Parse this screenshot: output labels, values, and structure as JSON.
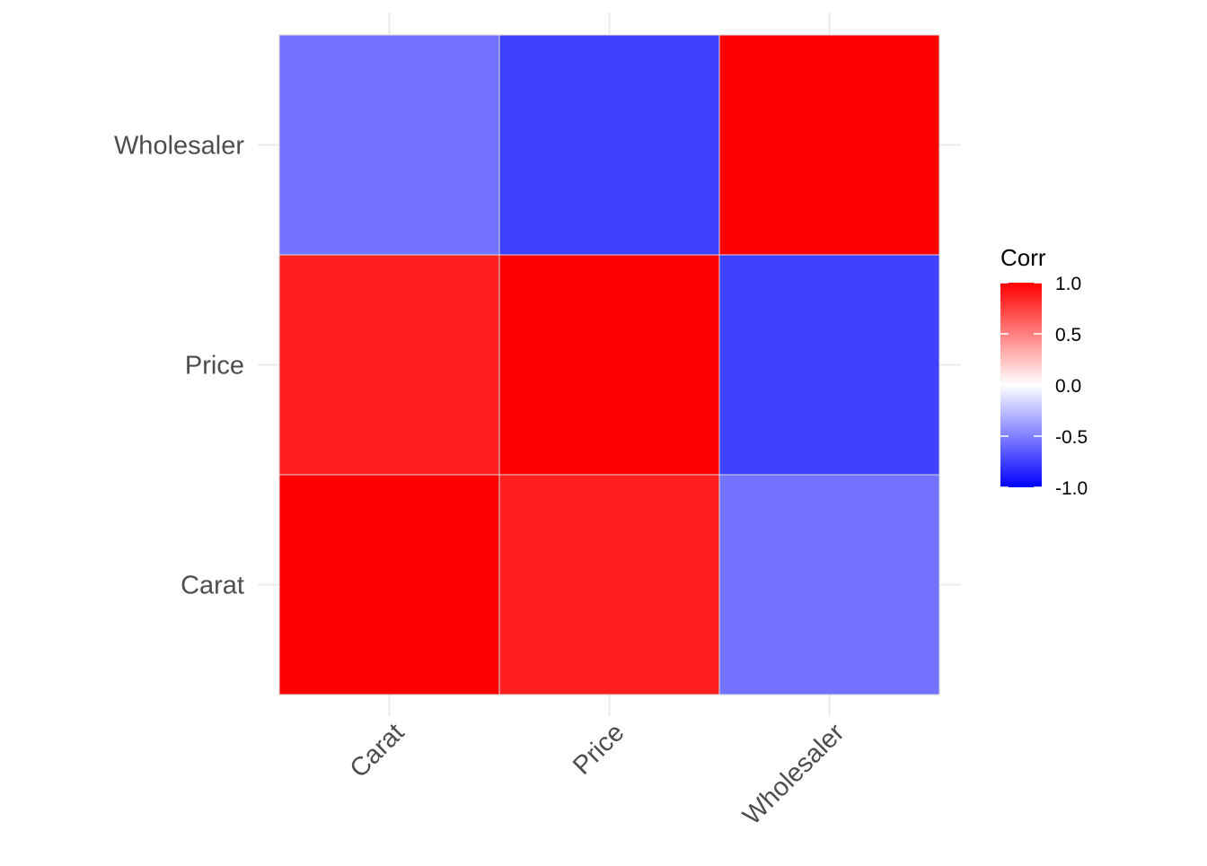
{
  "chart_data": {
    "type": "heatmap",
    "x_categories": [
      "Carat",
      "Price",
      "Wholesaler"
    ],
    "y_categories": [
      "Carat",
      "Price",
      "Wholesaler"
    ],
    "cells": [
      {
        "x": "Carat",
        "y": "Carat",
        "value": 1.0
      },
      {
        "x": "Price",
        "y": "Carat",
        "value": 0.88
      },
      {
        "x": "Wholesaler",
        "y": "Carat",
        "value": -0.55
      },
      {
        "x": "Carat",
        "y": "Price",
        "value": 0.88
      },
      {
        "x": "Price",
        "y": "Price",
        "value": 1.0
      },
      {
        "x": "Wholesaler",
        "y": "Price",
        "value": -0.75
      },
      {
        "x": "Carat",
        "y": "Wholesaler",
        "value": -0.55
      },
      {
        "x": "Price",
        "y": "Wholesaler",
        "value": -0.75
      },
      {
        "x": "Wholesaler",
        "y": "Wholesaler",
        "value": 1.0
      }
    ],
    "legend": {
      "title": "Corr",
      "ticks": [
        {
          "value": 1.0,
          "label": "1.0"
        },
        {
          "value": 0.5,
          "label": "0.5"
        },
        {
          "value": 0.0,
          "label": "0.0"
        },
        {
          "value": -0.5,
          "label": "-0.5"
        },
        {
          "value": -1.0,
          "label": "-1.0"
        }
      ],
      "limits": [
        -1,
        1
      ],
      "low_color": "#0000FF",
      "mid_color": "#FFFFFF",
      "high_color": "#FF0000",
      "placement": "right"
    },
    "grid": true
  }
}
